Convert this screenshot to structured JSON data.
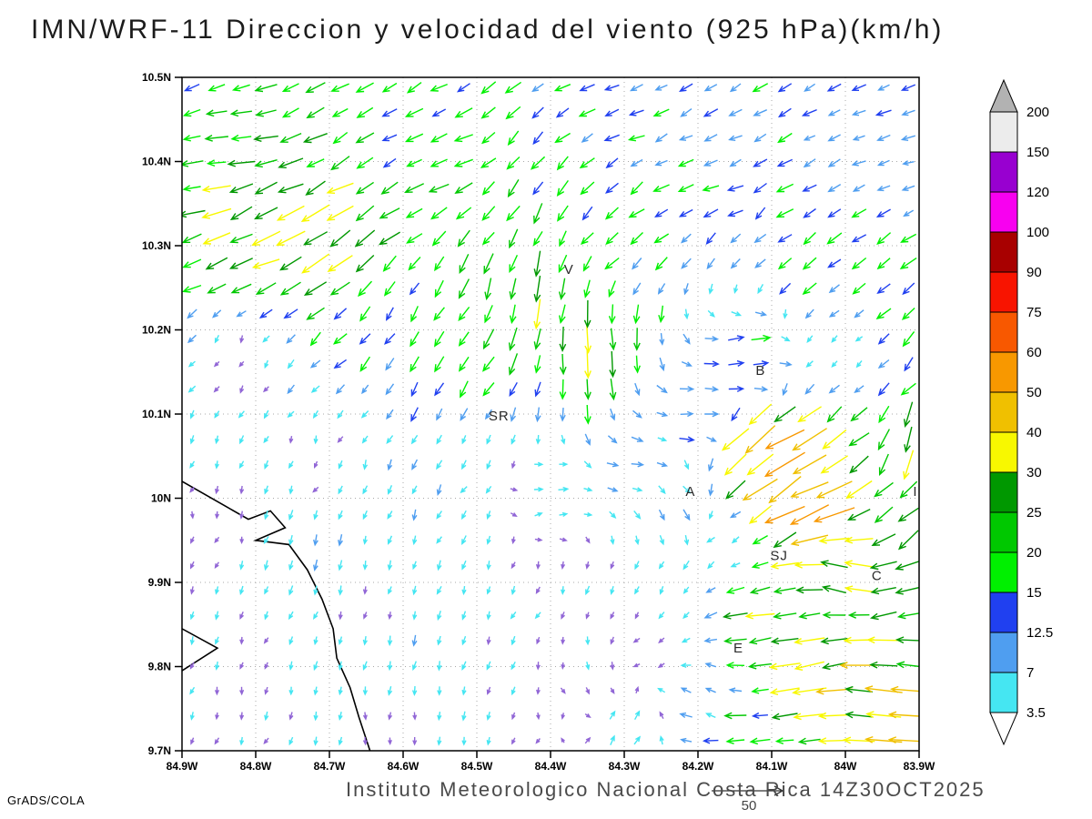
{
  "figure": {
    "title": "IMN/WRF-11 Direccion y velocidad del viento (925 hPa)(km/h)",
    "footer": "Instituto Meteorologico Nacional Costa Rica  14Z30OCT2025",
    "credit": "GrADS/COLA",
    "reference_vector": {
      "label": "50",
      "speed": 50
    }
  },
  "chart_data": {
    "type": "vector-field",
    "title": "IMN/WRF-11 Direccion y velocidad del viento (925 hPa)(km/h)",
    "model": "IMN/WRF-11",
    "variable": "Direccion y velocidad del viento",
    "level": "925 hPa",
    "units": "km/h",
    "valid_time": "14Z30OCT2025",
    "institution": "Instituto Meteorologico Nacional Costa Rica",
    "extent": {
      "lon_min": -84.9,
      "lon_max": -83.9,
      "lat_min": 9.7,
      "lat_max": 10.5
    },
    "x_ticks": {
      "values": [
        -84.9,
        -84.8,
        -84.7,
        -84.6,
        -84.5,
        -84.4,
        -84.3,
        -84.2,
        -84.1,
        -84.0,
        -83.9
      ],
      "labels": [
        "84.9W",
        "84.8W",
        "84.7W",
        "84.6W",
        "84.5W",
        "84.4W",
        "84.3W",
        "84.2W",
        "84.1W",
        "84W",
        "83.9W"
      ]
    },
    "y_ticks": {
      "values": [
        10.5,
        10.4,
        10.3,
        10.2,
        10.1,
        10.0,
        9.9,
        9.8,
        9.7
      ],
      "labels": [
        "10.5N",
        "10.4N",
        "10.3N",
        "10.2N",
        "10.1N",
        "10N",
        "9.9N",
        "9.8N",
        "9.7N"
      ]
    },
    "grid": {
      "nx": 30,
      "ny": 27,
      "style": "dotted"
    },
    "colorbar": {
      "levels": [
        3.5,
        7,
        12.5,
        15,
        20,
        25,
        30,
        40,
        50,
        60,
        75,
        90,
        100,
        120,
        150,
        200
      ],
      "labels_top_down": [
        "200",
        "150",
        "120",
        "100",
        "90",
        "75",
        "60",
        "50",
        "40",
        "30",
        "25",
        "20",
        "15",
        "12.5",
        "7",
        "3.5"
      ],
      "segment_colors_ascending": [
        "#45e6f2",
        "#4f9ef0",
        "#2040f0",
        "#00f000",
        "#00c800",
        "#009800",
        "#f8f800",
        "#f0c000",
        "#f89800",
        "#f85800",
        "#f81400",
        "#a80000",
        "#f800f0",
        "#9800d0",
        "#ececec"
      ],
      "below_color": "#ffffff",
      "above_color": "#b2b2b2",
      "calm_arrow_color": "#9166d6"
    },
    "stations": [
      {
        "label": "V",
        "lon": -84.375,
        "lat": 10.272
      },
      {
        "label": "B",
        "lon": -84.115,
        "lat": 10.152
      },
      {
        "label": "SR",
        "lon": -84.47,
        "lat": 10.098
      },
      {
        "label": "A",
        "lon": -84.21,
        "lat": 10.008
      },
      {
        "label": "SJ",
        "lon": -84.09,
        "lat": 9.932
      },
      {
        "label": "C",
        "lon": -83.957,
        "lat": 9.908
      },
      {
        "label": "E",
        "lon": -84.145,
        "lat": 9.822
      },
      {
        "label": "I",
        "lon": -83.905,
        "lat": 10.008
      }
    ],
    "coastlines": [
      [
        [
          -84.9,
          10.02
        ],
        [
          -84.84,
          9.99
        ],
        [
          -84.81,
          9.975
        ],
        [
          -84.78,
          9.985
        ],
        [
          -84.76,
          9.965
        ],
        [
          -84.8,
          9.95
        ],
        [
          -84.755,
          9.945
        ],
        [
          -84.73,
          9.915
        ],
        [
          -84.71,
          9.88
        ],
        [
          -84.695,
          9.845
        ],
        [
          -84.69,
          9.81
        ],
        [
          -84.672,
          9.775
        ],
        [
          -84.66,
          9.74
        ],
        [
          -84.645,
          9.7
        ]
      ],
      [
        [
          -84.9,
          9.845
        ],
        [
          -84.852,
          9.822
        ],
        [
          -84.9,
          9.795
        ]
      ]
    ],
    "flow_control_points": [
      [
        -84.88,
        10.47,
        -16,
        -5
      ],
      [
        -84.6,
        10.47,
        -14,
        -8
      ],
      [
        -84.3,
        10.47,
        -13,
        -5
      ],
      [
        -83.95,
        10.47,
        -11,
        -4
      ],
      [
        -84.85,
        10.41,
        -24,
        -2
      ],
      [
        -84.55,
        10.4,
        -16,
        -7
      ],
      [
        -84.2,
        10.4,
        -12,
        -5
      ],
      [
        -83.93,
        10.4,
        -10,
        -3
      ],
      [
        -84.8,
        10.33,
        -30,
        -12
      ],
      [
        -84.7,
        10.29,
        -28,
        -18
      ],
      [
        -84.45,
        10.33,
        -10,
        -16
      ],
      [
        -84.3,
        10.32,
        -12,
        -10
      ],
      [
        -84.05,
        10.3,
        -14,
        -9
      ],
      [
        -83.92,
        10.24,
        -12,
        -12
      ],
      [
        -84.42,
        10.24,
        -4,
        -26
      ],
      [
        -84.34,
        10.17,
        2,
        -26
      ],
      [
        -84.5,
        10.16,
        -10,
        -18
      ],
      [
        -84.62,
        10.21,
        -7,
        -11
      ],
      [
        -84.5,
        10.06,
        -3,
        -5
      ],
      [
        -84.82,
        10.16,
        -1,
        -2.5
      ],
      [
        -84.85,
        9.98,
        -0.5,
        -2.5
      ],
      [
        -84.8,
        9.8,
        -0.5,
        -3
      ],
      [
        -84.7,
        9.93,
        -2,
        -7
      ],
      [
        -84.65,
        9.88,
        -1,
        -3
      ],
      [
        -84.58,
        9.82,
        -1,
        -6
      ],
      [
        -84.6,
        9.72,
        0,
        -3.5
      ],
      [
        -84.72,
        10.05,
        -1,
        -3
      ],
      [
        -84.45,
        9.9,
        -1.5,
        -3.5
      ],
      [
        -84.35,
        9.78,
        1,
        -3
      ],
      [
        -84.25,
        9.86,
        -2,
        -3
      ],
      [
        -84.4,
        10.0,
        5,
        1
      ],
      [
        -84.28,
        10.04,
        8,
        -2
      ],
      [
        -84.2,
        10.1,
        14,
        1
      ],
      [
        -84.13,
        10.16,
        18,
        3
      ],
      [
        -84.0,
        10.17,
        -3,
        -3
      ],
      [
        -84.12,
        10.06,
        -30,
        -28
      ],
      [
        -84.08,
        10.03,
        -52,
        -30
      ],
      [
        -84.04,
        10.01,
        -44,
        -18
      ],
      [
        -83.91,
        10.05,
        -8,
        -26
      ],
      [
        -83.92,
        9.97,
        -20,
        -18
      ],
      [
        -84.0,
        9.91,
        -30,
        6
      ],
      [
        -83.93,
        9.88,
        -22,
        -6
      ],
      [
        -83.95,
        9.76,
        -40,
        4
      ],
      [
        -84.05,
        9.79,
        -34,
        -6
      ],
      [
        -84.15,
        9.73,
        -20,
        -2
      ],
      [
        -83.92,
        9.82,
        -30,
        2
      ],
      [
        -84.1,
        9.84,
        -30,
        -4
      ],
      [
        -84.22,
        9.99,
        6,
        -6
      ],
      [
        -84.3,
        9.72,
        3,
        6
      ],
      [
        -84.18,
        9.76,
        -6,
        4
      ],
      [
        -84.17,
        9.95,
        -4,
        -3
      ]
    ]
  }
}
